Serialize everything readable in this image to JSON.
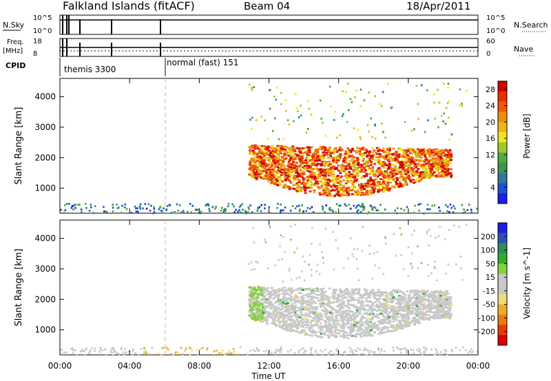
{
  "header": {
    "station": "Falkland Islands (fitACF)",
    "beam": "Beam 04",
    "date": "18/Apr/2011"
  },
  "strips": {
    "nsky": {
      "label": "N.Sky",
      "left_top": "10^5",
      "left_bottom": "10^0",
      "right_top": "10^5",
      "right_bottom": "10^0",
      "right_label": "N.Search"
    },
    "freq": {
      "label_top": "Freq.",
      "label_unit": "[MHz]",
      "left_top": "18",
      "left_bottom": "8",
      "right_top": "60",
      "right_bottom": "0",
      "right_label": "Nave"
    },
    "cpid": {
      "label": "CPID",
      "segments": [
        "themis 3300",
        "normal (fast) 151"
      ]
    }
  },
  "colors": {
    "frame": "#000000",
    "power_scale": [
      "#1e1ee6",
      "#1e50d2",
      "#2d7896",
      "#3c9650",
      "#50aa3c",
      "#a0c828",
      "#f0e61e",
      "#f0b414",
      "#f08c0a",
      "#f05a05",
      "#e62d00",
      "#d20000"
    ],
    "velocity_scale": [
      "#1e1ee6",
      "#2d50b4",
      "#2d8c5a",
      "#32aa32",
      "#82d23c",
      "#c8c8c8",
      "#c8c8c8",
      "#f0dc78",
      "#f0aa28",
      "#f07814",
      "#e63c0a",
      "#dc0000"
    ],
    "ground_scatter": "#c8c8c8"
  },
  "chart_data": [
    {
      "type": "heatmap",
      "title": "",
      "xlabel": "",
      "ylabel": "Slant Range [km]",
      "x_ticks": [
        "00:00",
        "04:00",
        "08:00",
        "12:00",
        "16:00",
        "20:00",
        "00:00"
      ],
      "y_ticks": [
        "1000",
        "2000",
        "3000",
        "4000"
      ],
      "xlim_hours": [
        0,
        24
      ],
      "ylim_km": [
        180,
        4600
      ],
      "colorbar": {
        "label": "Power [dB]",
        "ticks": [
          "4",
          "8",
          "12",
          "16",
          "20",
          "24",
          "28"
        ],
        "range": [
          0,
          30
        ]
      },
      "features": [
        {
          "desc": "main scatter band",
          "hours": [
            10.8,
            22.4
          ],
          "range_km": [
            800,
            2500
          ],
          "value": 24
        },
        {
          "desc": "near-range sporadic echoes",
          "hours": [
            0.0,
            24.0
          ],
          "range_km": [
            180,
            500
          ],
          "value": 6
        }
      ]
    },
    {
      "type": "heatmap",
      "title": "",
      "xlabel": "Time UT",
      "ylabel": "Slant Range [km]",
      "x_ticks": [
        "00:00",
        "04:00",
        "08:00",
        "12:00",
        "16:00",
        "20:00",
        "00:00"
      ],
      "y_ticks": [
        "1000",
        "2000",
        "3000",
        "4000"
      ],
      "xlim_hours": [
        0,
        24
      ],
      "ylim_km": [
        180,
        4600
      ],
      "colorbar": {
        "label": "Velocity [m s^-1]",
        "ticks": [
          "200",
          "100",
          "50",
          "15",
          "-15",
          "-50",
          "-100",
          "-200"
        ],
        "range": [
          -250,
          250
        ]
      },
      "features": [
        {
          "desc": "ground scatter band (grey)",
          "hours": [
            10.8,
            22.4
          ],
          "range_km": [
            800,
            2500
          ],
          "value": 0
        },
        {
          "desc": "low-velocity echoes (green)",
          "hours": [
            10.8,
            11.6
          ],
          "range_km": [
            1300,
            2500
          ],
          "value": 40
        },
        {
          "desc": "near-range negative echoes (orange)",
          "hours": [
            4.5,
            10.5
          ],
          "range_km": [
            180,
            450
          ],
          "value": -40
        }
      ]
    }
  ]
}
